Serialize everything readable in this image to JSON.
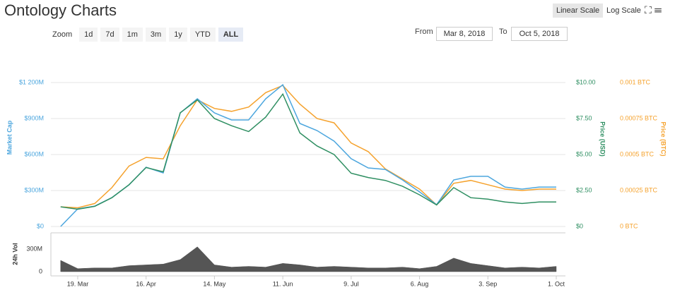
{
  "ui": {
    "title": "Ontology Charts",
    "scale_buttons": [
      "Linear Scale",
      "Log Scale"
    ],
    "log_scale": false,
    "zoom_label": "Zoom",
    "zoom_buttons": [
      "1d",
      "7d",
      "1m",
      "3m",
      "1y",
      "YTD",
      "ALL"
    ],
    "zoom_selected": "ALL",
    "from_label": "From",
    "from_date": "Mar 8, 2018",
    "to_label": "To",
    "to_date": "Oct 5, 2018"
  },
  "chart_data": {
    "type": "line",
    "categories": [
      null,
      null,
      "19. Mar",
      null,
      null,
      null,
      "16. Apr",
      null,
      null,
      null,
      "14. May",
      null,
      null,
      null,
      "11. Jun",
      null,
      null,
      null,
      "9. Jul",
      null,
      null,
      null,
      "6. Aug",
      null,
      null,
      null,
      "3. Sep",
      null,
      null,
      null,
      "1. Oct"
    ],
    "series": [
      {
        "name": "Market Cap",
        "color": "#4ca6de",
        "axis": "y",
        "values": [
          null,
          0,
          147000000,
          170000000,
          241000000,
          347000000,
          494000000,
          447000000,
          947000000,
          1065000000,
          947000000,
          888000000,
          888000000,
          1065000000,
          1182000000,
          859000000,
          800000000,
          712000000,
          565000000,
          488000000,
          476000000,
          388000000,
          288000000,
          182000000,
          388000000,
          418000000,
          418000000,
          329000000,
          312000000,
          329000000,
          329000000
        ]
      },
      {
        "name": "Price (USD)",
        "color": "#2f8f62",
        "axis": "y2",
        "values": [
          null,
          1.37,
          1.2,
          1.4,
          2.0,
          2.9,
          4.1,
          3.8,
          7.9,
          8.8,
          7.5,
          7.0,
          6.6,
          7.6,
          9.2,
          6.5,
          5.6,
          5.0,
          3.7,
          3.4,
          3.2,
          2.8,
          2.2,
          1.5,
          2.7,
          2.0,
          1.9,
          1.7,
          1.6,
          1.7,
          1.7
        ]
      },
      {
        "name": "Price (BTC)",
        "color": "#f5a22d",
        "axis": "y3",
        "values": [
          null,
          0.000137,
          0.00013,
          0.00016,
          0.00027,
          0.00042,
          0.00048,
          0.00047,
          0.0007,
          0.00088,
          0.00082,
          0.0008,
          0.00083,
          0.00093,
          0.00098,
          0.00085,
          0.00075,
          0.00072,
          0.00058,
          0.00052,
          0.0004,
          0.00033,
          0.00026,
          0.00015,
          0.0003,
          0.00032,
          0.00029,
          0.00026,
          0.00025,
          0.00026,
          0.00026
        ]
      },
      {
        "name": "24h Vol",
        "color": "#555555",
        "axis": "volume",
        "type": "area",
        "values": [
          null,
          150000000,
          40000000,
          50000000,
          50000000,
          80000000,
          90000000,
          100000000,
          160000000,
          330000000,
          90000000,
          60000000,
          70000000,
          60000000,
          110000000,
          90000000,
          60000000,
          70000000,
          60000000,
          50000000,
          50000000,
          60000000,
          40000000,
          70000000,
          180000000,
          110000000,
          80000000,
          50000000,
          60000000,
          50000000,
          70000000
        ]
      }
    ],
    "ylim": [
      0,
      1350000000
    ],
    "yticks": [
      {
        "value": 0,
        "label": "$0"
      },
      {
        "value": 300000000,
        "label": "$300M"
      },
      {
        "value": 600000000,
        "label": "$600M"
      },
      {
        "value": 900000000,
        "label": "$900M"
      },
      {
        "value": 1200000000,
        "label": "$1 200M"
      }
    ],
    "y2lim": [
      0,
      11.25
    ],
    "y2ticks": [
      {
        "value": 0,
        "label": "$0"
      },
      {
        "value": 2.5,
        "label": "$2.50"
      },
      {
        "value": 5,
        "label": "$5.00"
      },
      {
        "value": 7.5,
        "label": "$7.50"
      },
      {
        "value": 10,
        "label": "$10.00"
      }
    ],
    "y3lim": [
      0,
      0.001125
    ],
    "y3ticks": [
      {
        "value": 0,
        "label": "0 BTC"
      },
      {
        "value": 0.00025,
        "label": "0.00025 BTC"
      },
      {
        "value": 0.0005,
        "label": "0.0005 BTC"
      },
      {
        "value": 0.00075,
        "label": "0.00075 BTC"
      },
      {
        "value": 0.001,
        "label": "0.001 BTC"
      }
    ],
    "volume_ylim": [
      0,
      450000000
    ],
    "volume_yticks": [
      0,
      {
        "value": 300000000,
        "label": "300M"
      }
    ],
    "grid": true
  }
}
